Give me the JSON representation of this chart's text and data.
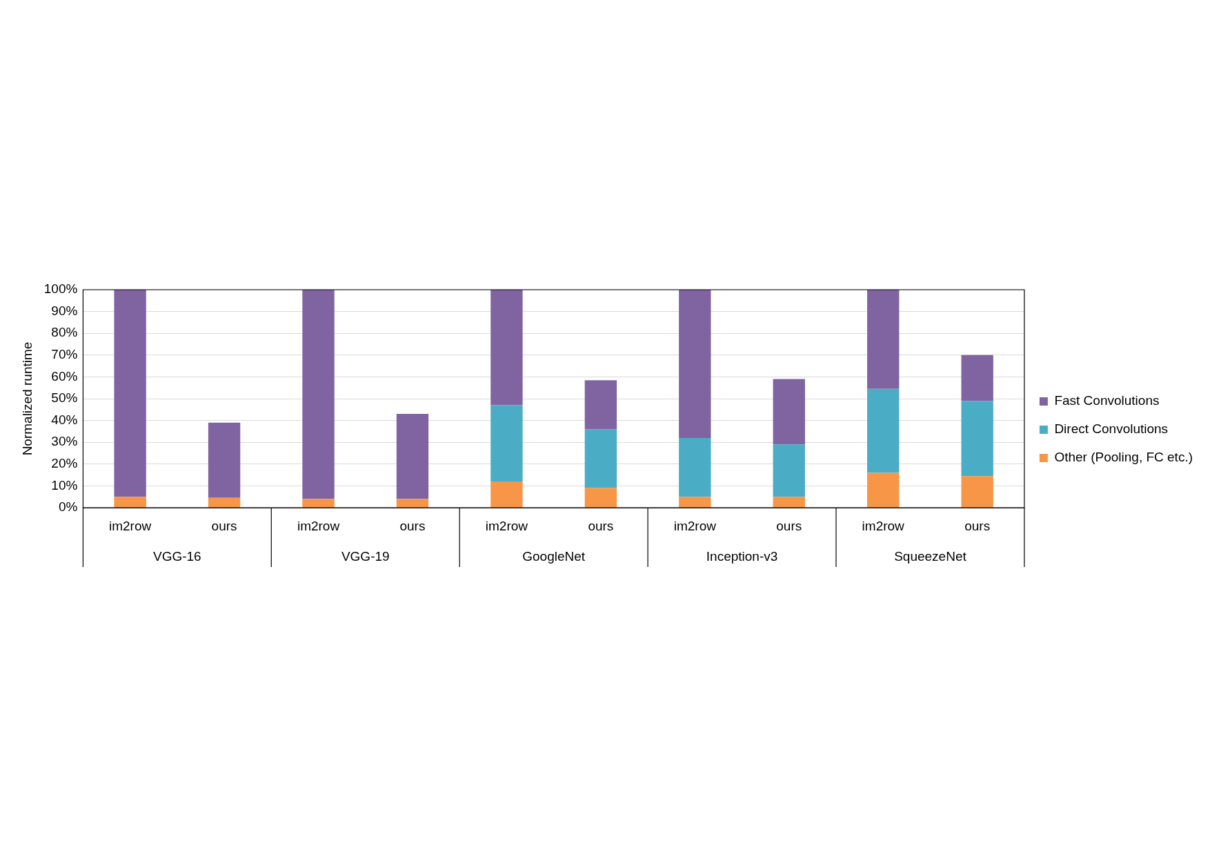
{
  "chart_data": {
    "type": "bar",
    "stacked": true,
    "ylabel": "Normalized runtime",
    "categories": [
      "im2row",
      "ours",
      "im2row",
      "ours",
      "im2row",
      "ours",
      "im2row",
      "ours",
      "im2row",
      "ours"
    ],
    "annotations": [
      "VGG-16",
      "VGG-19",
      "GoogleNet",
      "Inception-v3",
      "SqueezeNet"
    ],
    "series": [
      {
        "name": "Other (Pooling, FC etc.)",
        "color": "#f79646",
        "values": [
          5,
          4.5,
          4,
          4,
          12,
          9,
          5,
          5,
          16,
          14.5
        ]
      },
      {
        "name": "Direct Convolutions",
        "color": "#4bacc6",
        "values": [
          0,
          0,
          0,
          0,
          35,
          27,
          27,
          24,
          38.5,
          34.5
        ]
      },
      {
        "name": "Fast Convolutions",
        "color": "#8064a2",
        "values": [
          95,
          34.5,
          96,
          39,
          53,
          22.5,
          68,
          30,
          45.5,
          21
        ]
      }
    ],
    "ylim": [
      0,
      100
    ],
    "yticks": [
      {
        "value": 0,
        "label": "0%"
      },
      {
        "value": 10,
        "label": "10%"
      },
      {
        "value": 20,
        "label": "20%"
      },
      {
        "value": 30,
        "label": "30%"
      },
      {
        "value": 40,
        "label": "40%"
      },
      {
        "value": 50,
        "label": "50%"
      },
      {
        "value": 60,
        "label": "60%"
      },
      {
        "value": 70,
        "label": "70%"
      },
      {
        "value": 80,
        "label": "80%"
      },
      {
        "value": 90,
        "label": "90%"
      },
      {
        "value": 100,
        "label": "100%"
      }
    ],
    "grid": "y",
    "legend": "right"
  }
}
